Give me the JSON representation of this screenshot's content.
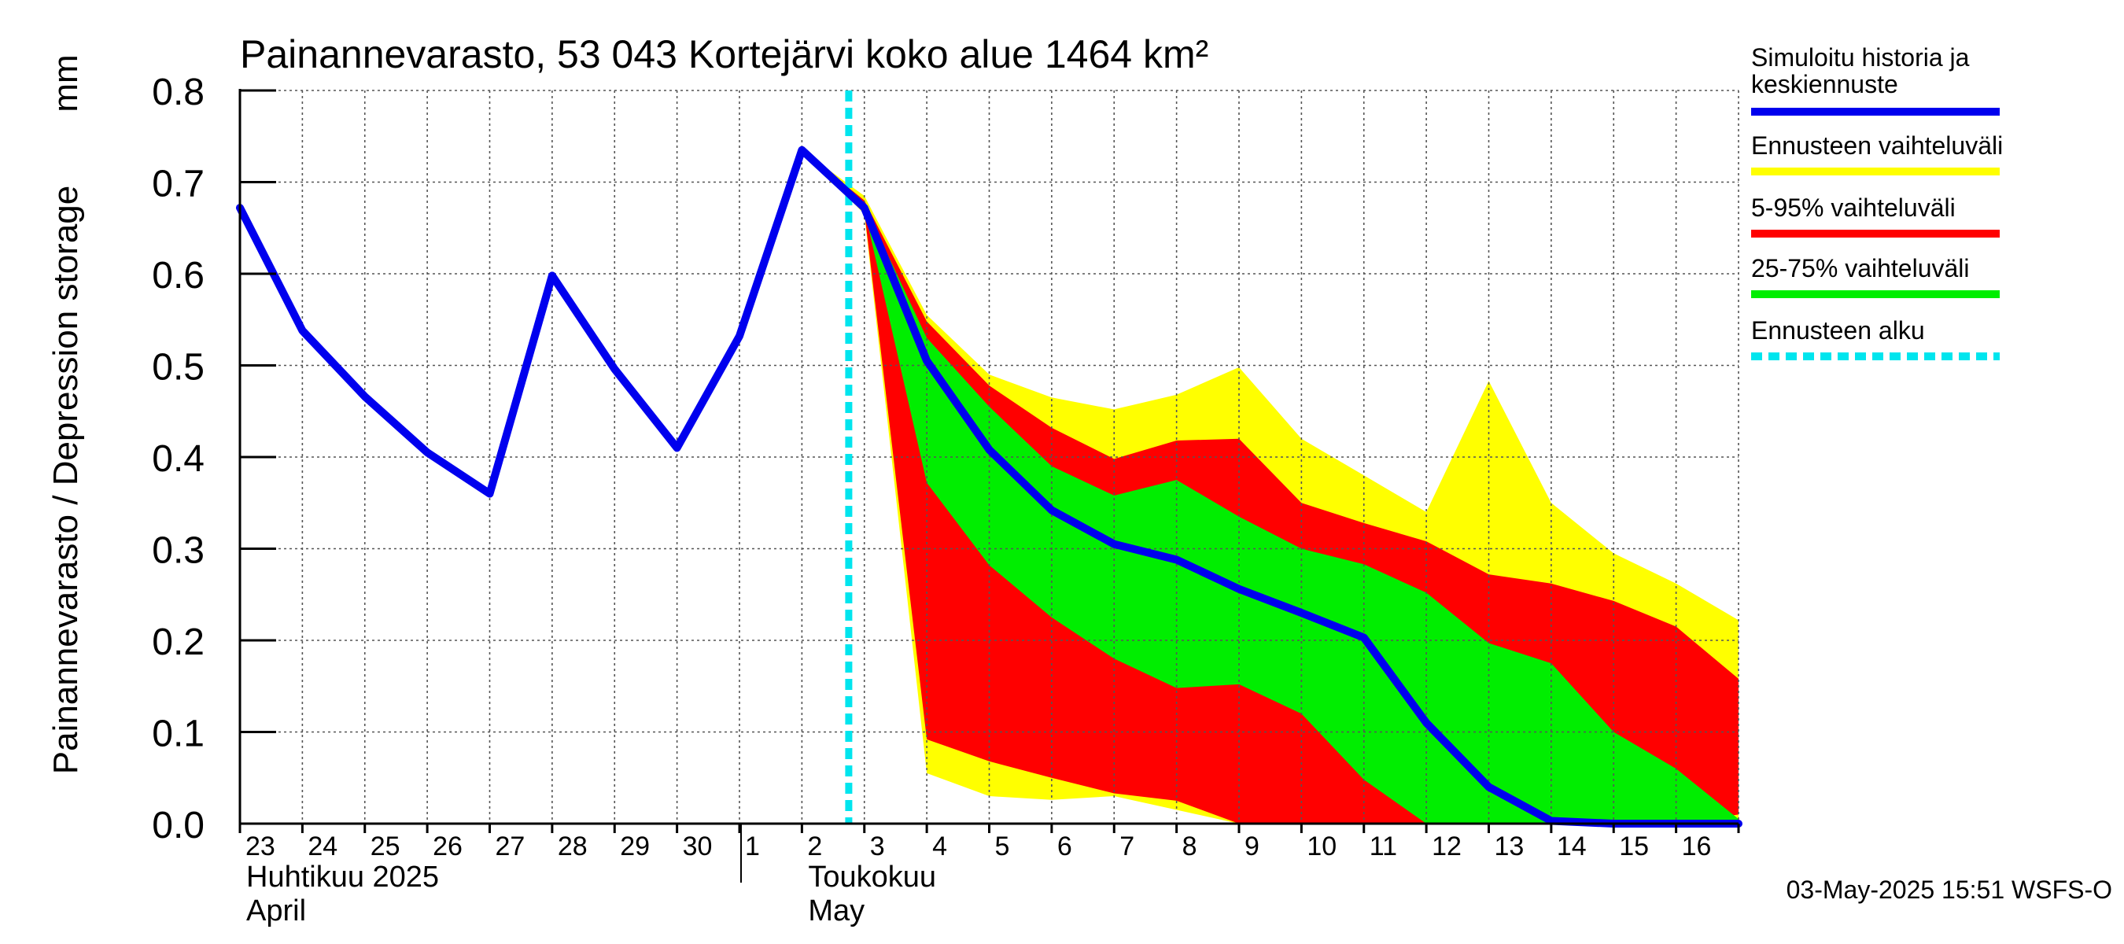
{
  "chart_data": {
    "type": "area",
    "title": "Painannevarasto, 53 043 Kortejärvi koko alue 1464 km²",
    "ylabel": "Painannevarasto / Depression storage",
    "yunit": "mm",
    "ylim": [
      0,
      0.8
    ],
    "yticks": [
      "0.0",
      "0.1",
      "0.2",
      "0.3",
      "0.4",
      "0.5",
      "0.6",
      "0.7",
      "0.8"
    ],
    "x": [
      "2025-04-23",
      "2025-04-24",
      "2025-04-25",
      "2025-04-26",
      "2025-04-27",
      "2025-04-28",
      "2025-04-29",
      "2025-04-30",
      "2025-05-01",
      "2025-05-02",
      "2025-05-03",
      "2025-05-04",
      "2025-05-05",
      "2025-05-06",
      "2025-05-07",
      "2025-05-08",
      "2025-05-09",
      "2025-05-10",
      "2025-05-11",
      "2025-05-12",
      "2025-05-13",
      "2025-05-14",
      "2025-05-15",
      "2025-05-16",
      "2025-05-17"
    ],
    "xticks": [
      "23",
      "24",
      "25",
      "26",
      "27",
      "28",
      "29",
      "30",
      "1",
      "2",
      "3",
      "4",
      "5",
      "6",
      "7",
      "8",
      "9",
      "10",
      "11",
      "12",
      "13",
      "14",
      "15",
      "16"
    ],
    "month_labels": [
      {
        "fi": "Huhtikuu  2025",
        "en": "April"
      },
      {
        "fi": "Toukokuu",
        "en": "May"
      }
    ],
    "forecast_start": "2025-05-03",
    "grid": true,
    "legend_position": "right",
    "series": [
      {
        "name": "Ennusteen vaihteluväli",
        "color": "#ffff00",
        "type": "band",
        "x": [
          "2025-05-02",
          "2025-05-03",
          "2025-05-04",
          "2025-05-05",
          "2025-05-06",
          "2025-05-07",
          "2025-05-08",
          "2025-05-09",
          "2025-05-10",
          "2025-05-11",
          "2025-05-12",
          "2025-05-13",
          "2025-05-14",
          "2025-05-15",
          "2025-05-16",
          "2025-05-17"
        ],
        "upper": [
          0.735,
          0.685,
          0.555,
          0.49,
          0.465,
          0.452,
          0.468,
          0.498,
          0.42,
          0.38,
          0.34,
          0.483,
          0.35,
          0.295,
          0.262,
          0.222
        ],
        "lower": [
          0.735,
          0.665,
          0.055,
          0.03,
          0.026,
          0.03,
          0.015,
          0.0,
          0.0,
          0.0,
          0.0,
          0.0,
          0.0,
          0.0,
          0.0,
          0.0
        ]
      },
      {
        "name": "5-95% vaihteluväli",
        "color": "#ff0000",
        "type": "band",
        "x": [
          "2025-05-02",
          "2025-05-03",
          "2025-05-04",
          "2025-05-05",
          "2025-05-06",
          "2025-05-07",
          "2025-05-08",
          "2025-05-09",
          "2025-05-10",
          "2025-05-11",
          "2025-05-12",
          "2025-05-13",
          "2025-05-14",
          "2025-05-15",
          "2025-05-16",
          "2025-05-17"
        ],
        "upper": [
          0.735,
          0.68,
          0.548,
          0.478,
          0.432,
          0.398,
          0.418,
          0.42,
          0.35,
          0.328,
          0.308,
          0.272,
          0.262,
          0.243,
          0.215,
          0.158
        ],
        "lower": [
          0.735,
          0.668,
          0.092,
          0.068,
          0.05,
          0.033,
          0.025,
          0.0,
          0.0,
          0.0,
          0.0,
          0.0,
          0.0,
          0.0,
          0.0,
          0.01
        ]
      },
      {
        "name": "25-75% vaihteluväli",
        "color": "#00ee00",
        "type": "band",
        "x": [
          "2025-05-02",
          "2025-05-03",
          "2025-05-04",
          "2025-05-05",
          "2025-05-06",
          "2025-05-07",
          "2025-05-08",
          "2025-05-09",
          "2025-05-10",
          "2025-05-11",
          "2025-05-12",
          "2025-05-13",
          "2025-05-14",
          "2025-05-15",
          "2025-05-16",
          "2025-05-17"
        ],
        "upper": [
          0.735,
          0.675,
          0.53,
          0.455,
          0.39,
          0.358,
          0.375,
          0.335,
          0.3,
          0.283,
          0.252,
          0.197,
          0.175,
          0.1,
          0.06,
          0.005
        ],
        "lower": [
          0.735,
          0.67,
          0.372,
          0.282,
          0.225,
          0.18,
          0.148,
          0.152,
          0.12,
          0.048,
          0.0,
          0.0,
          0.0,
          0.0,
          0.0,
          0.0
        ]
      },
      {
        "name": "Simuloitu historia ja keskiennuste",
        "color": "#0000ee",
        "type": "line",
        "x": [
          "2025-04-23",
          "2025-04-24",
          "2025-04-25",
          "2025-04-26",
          "2025-04-27",
          "2025-04-28",
          "2025-04-29",
          "2025-04-30",
          "2025-05-01",
          "2025-05-02",
          "2025-05-03",
          "2025-05-04",
          "2025-05-05",
          "2025-05-06",
          "2025-05-07",
          "2025-05-08",
          "2025-05-09",
          "2025-05-10",
          "2025-05-11",
          "2025-05-12",
          "2025-05-13",
          "2025-05-14",
          "2025-05-15",
          "2025-05-16",
          "2025-05-17"
        ],
        "values": [
          0.672,
          0.538,
          0.466,
          0.405,
          0.36,
          0.598,
          0.496,
          0.41,
          0.532,
          0.735,
          0.672,
          0.505,
          0.408,
          0.342,
          0.305,
          0.288,
          0.256,
          0.23,
          0.203,
          0.11,
          0.04,
          0.003,
          0.0,
          0.0,
          0.0
        ]
      }
    ],
    "legend": [
      {
        "label": "Simuloitu historia ja keskiennuste",
        "color": "#0000ee",
        "style": "solid"
      },
      {
        "label": "Ennusteen vaihteluväli",
        "color": "#ffff00",
        "style": "solid"
      },
      {
        "label": "5-95% vaihteluväli",
        "color": "#ff0000",
        "style": "solid"
      },
      {
        "label": "25-75% vaihteluväli",
        "color": "#00ee00",
        "style": "solid"
      },
      {
        "label": "Ennusteen alku",
        "color": "#00e5ee",
        "style": "dashed"
      }
    ],
    "footer": "03-May-2025 15:51 WSFS-O"
  }
}
